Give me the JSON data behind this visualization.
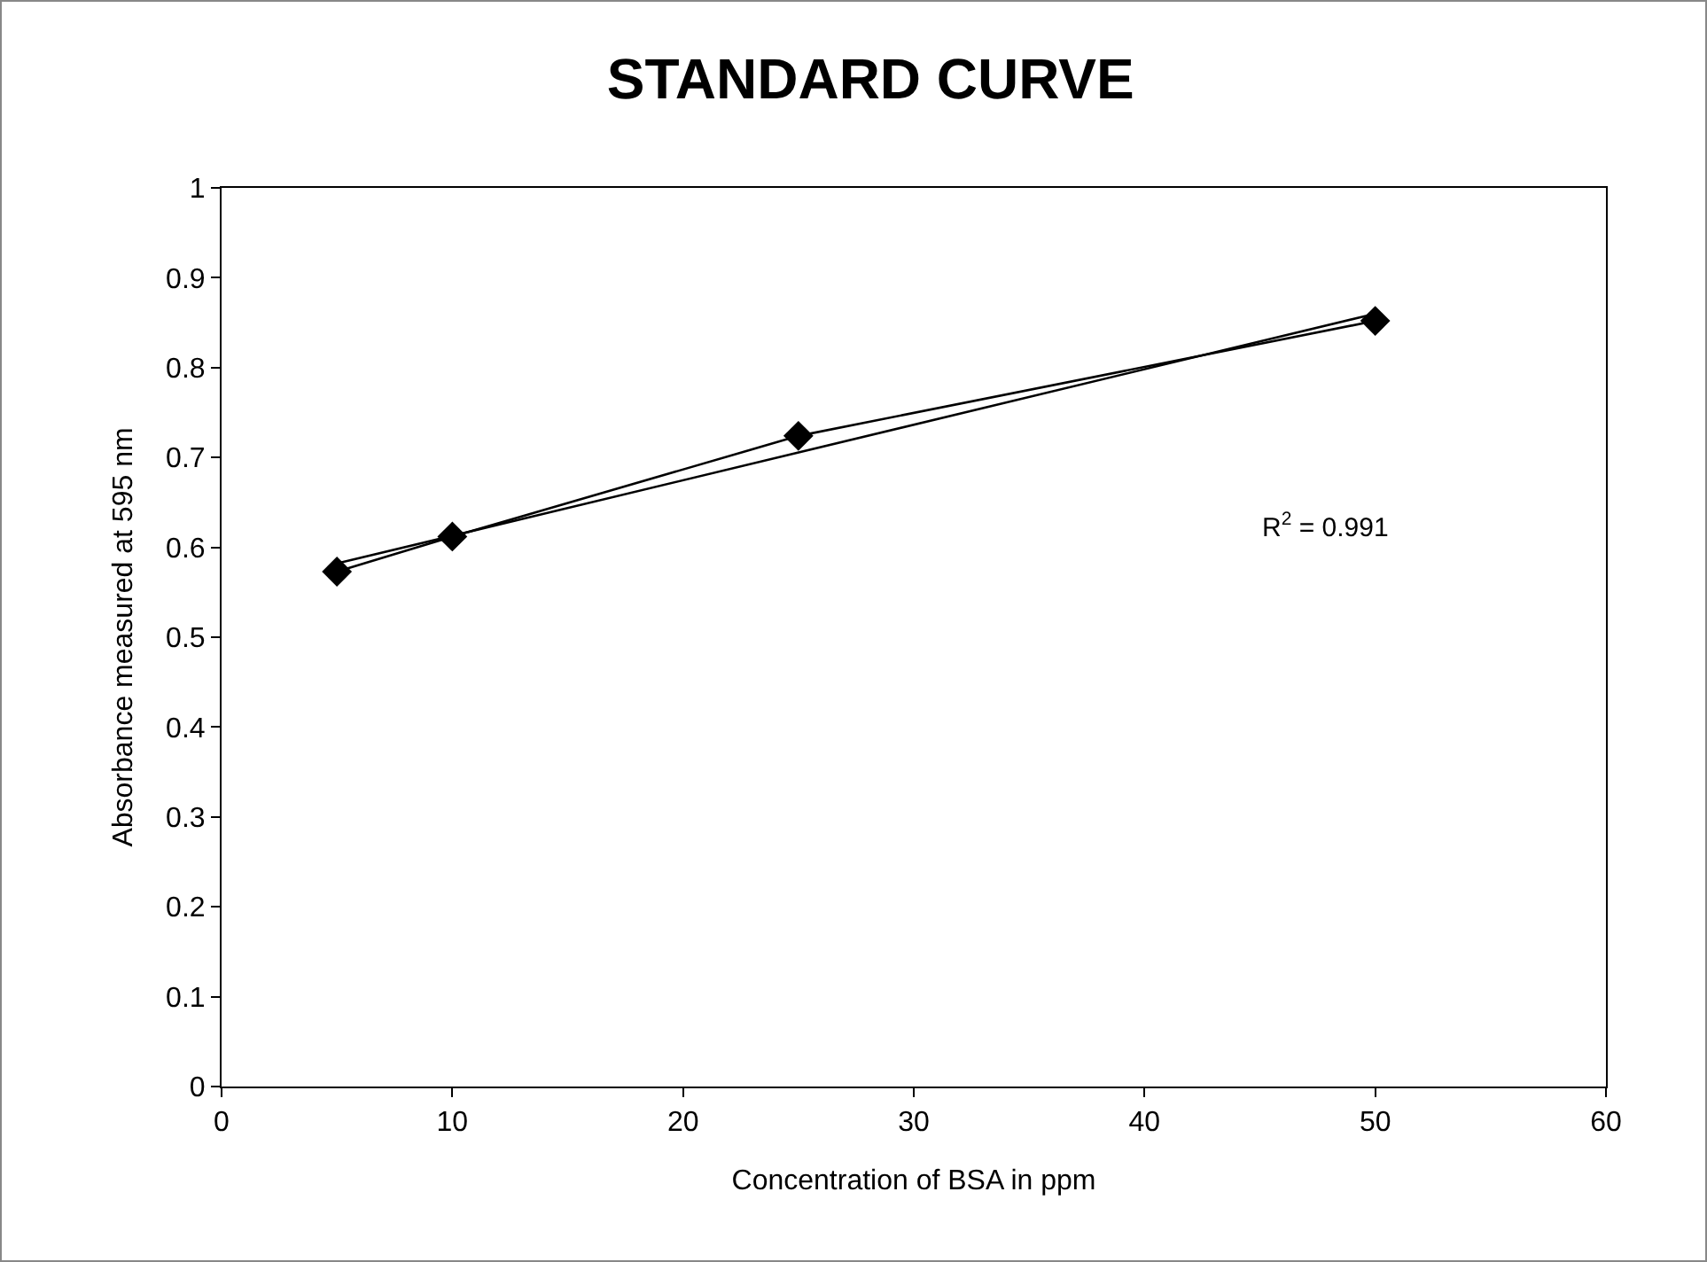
{
  "chart_data": {
    "type": "line",
    "title": "STANDARD CURVE",
    "xlabel": "Concentration of BSA in ppm",
    "ylabel": "Absorbance measured at 595 nm",
    "x": [
      5,
      10,
      25,
      50
    ],
    "series": [
      {
        "color": "#000000",
        "values": [
          0.573,
          0.612,
          0.724,
          0.852
        ],
        "marker": "diamond"
      },
      {
        "type": "line",
        "color": "#000000",
        "x": [
          5,
          50
        ],
        "values": [
          0.582,
          0.86
        ],
        "marker": "none"
      }
    ],
    "xlim": [
      0,
      60
    ],
    "xticks": [
      0,
      10,
      20,
      30,
      40,
      50,
      60
    ],
    "ylim": [
      0,
      1
    ],
    "yticks": [
      0,
      0.1,
      0.2,
      0.3,
      0.4,
      0.5,
      0.6,
      0.7,
      0.8,
      0.9,
      1
    ],
    "annotations": [
      "R$^{2}$ = 0.991"
    ]
  }
}
